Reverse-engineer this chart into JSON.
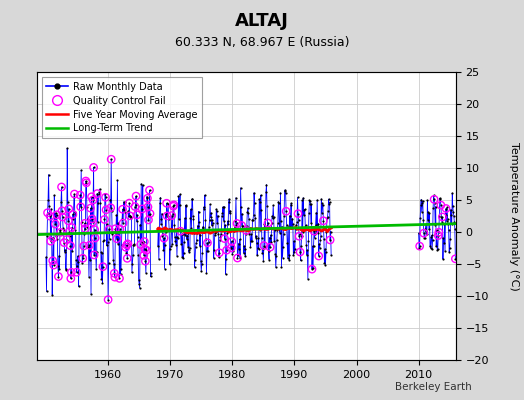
{
  "title": "ALTAJ",
  "subtitle": "60.333 N, 68.967 E (Russia)",
  "ylabel": "Temperature Anomaly (°C)",
  "attribution": "Berkeley Earth",
  "xlim": [
    1948.5,
    2016
  ],
  "ylim": [
    -20,
    25
  ],
  "yticks": [
    -20,
    -15,
    -10,
    -5,
    0,
    5,
    10,
    15,
    20,
    25
  ],
  "xticks": [
    1960,
    1970,
    1980,
    1990,
    2000,
    2010
  ],
  "bg_color": "#d8d8d8",
  "plot_bg_color": "#ffffff",
  "raw_color": "#0000ff",
  "qc_color": "#ff00ff",
  "ma_color": "#ff0000",
  "trend_color": "#00bb00",
  "seed": 17
}
